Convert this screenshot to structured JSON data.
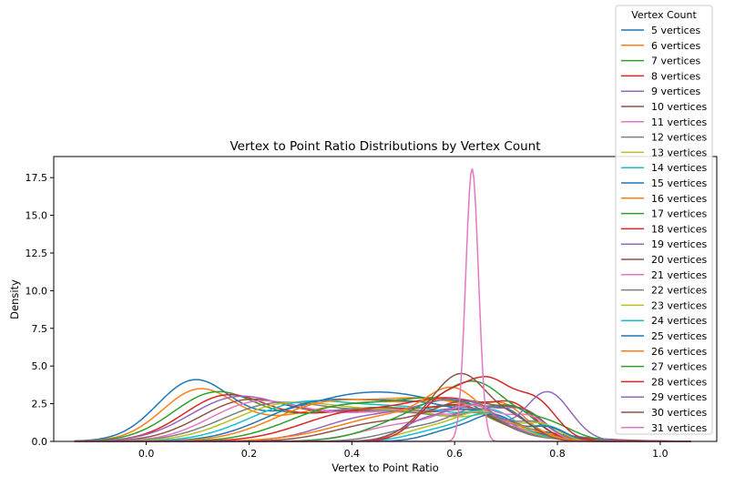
{
  "chart_data": {
    "type": "line",
    "title": "Vertex to Point Ratio Distributions by Vertex Count",
    "xlabel": "Vertex to Point Ratio",
    "ylabel": "Density",
    "xlim": [
      -0.18,
      1.11
    ],
    "ylim": [
      0,
      18.9
    ],
    "xticks": [
      0.0,
      0.2,
      0.4,
      0.6,
      0.8,
      1.0
    ],
    "xtick_labels": [
      "0.0",
      "0.2",
      "0.4",
      "0.6",
      "0.8",
      "1.0"
    ],
    "yticks": [
      0.0,
      2.5,
      5.0,
      7.5,
      10.0,
      12.5,
      15.0,
      17.5
    ],
    "ytick_labels": [
      "0.0",
      "2.5",
      "5.0",
      "7.5",
      "10.0",
      "12.5",
      "15.0",
      "17.5"
    ],
    "grid": false,
    "legend": {
      "title": "Vertex Count",
      "placement": "upper-right-outside"
    },
    "series": [
      {
        "name": "5 vertices",
        "color": "#1f77b4",
        "components": [
          [
            0.09,
            0.07,
            1.0
          ],
          [
            0.45,
            0.18,
            0.9
          ],
          [
            0.62,
            0.03,
            0.15
          ]
        ],
        "peak": 4.1
      },
      {
        "name": "6 vertices",
        "color": "#ff7f0e",
        "components": [
          [
            0.1,
            0.07,
            1.0
          ],
          [
            0.45,
            0.18,
            0.85
          ],
          [
            0.6,
            0.05,
            0.25
          ]
        ],
        "peak": 3.5
      },
      {
        "name": "7 vertices",
        "color": "#2ca02c",
        "components": [
          [
            0.13,
            0.08,
            1.0
          ],
          [
            0.45,
            0.18,
            0.8
          ],
          [
            0.62,
            0.05,
            0.3
          ]
        ],
        "peak": 3.3
      },
      {
        "name": "8 vertices",
        "color": "#d62728",
        "components": [
          [
            0.15,
            0.08,
            1.0
          ],
          [
            0.46,
            0.18,
            0.85
          ],
          [
            0.62,
            0.05,
            0.35
          ]
        ],
        "peak": 3.1
      },
      {
        "name": "9 vertices",
        "color": "#9467bd",
        "components": [
          [
            0.17,
            0.09,
            1.0
          ],
          [
            0.46,
            0.16,
            0.85
          ],
          [
            0.64,
            0.05,
            0.4
          ]
        ],
        "peak": 3.0
      },
      {
        "name": "10 vertices",
        "color": "#8c564b",
        "components": [
          [
            0.19,
            0.09,
            1.0
          ],
          [
            0.47,
            0.15,
            0.85
          ],
          [
            0.64,
            0.05,
            0.4
          ]
        ],
        "peak": 2.8
      },
      {
        "name": "11 vertices",
        "color": "#e377c2",
        "components": [
          [
            0.21,
            0.09,
            1.0
          ],
          [
            0.48,
            0.15,
            0.85
          ],
          [
            0.66,
            0.05,
            0.4
          ]
        ],
        "peak": 2.7
      },
      {
        "name": "12 vertices",
        "color": "#7f7f7f",
        "components": [
          [
            0.24,
            0.1,
            1.0
          ],
          [
            0.49,
            0.14,
            0.9
          ],
          [
            0.66,
            0.04,
            0.45
          ]
        ],
        "peak": 2.6
      },
      {
        "name": "13 vertices",
        "color": "#bcbd22",
        "components": [
          [
            0.26,
            0.1,
            1.0
          ],
          [
            0.5,
            0.14,
            0.95
          ],
          [
            0.68,
            0.04,
            0.45
          ]
        ],
        "peak": 2.6
      },
      {
        "name": "14 vertices",
        "color": "#17becf",
        "components": [
          [
            0.29,
            0.1,
            1.0
          ],
          [
            0.52,
            0.13,
            1.0
          ],
          [
            0.68,
            0.04,
            0.5
          ]
        ],
        "peak": 2.7
      },
      {
        "name": "15 vertices",
        "color": "#1f77b4",
        "components": [
          [
            0.32,
            0.1,
            0.9
          ],
          [
            0.54,
            0.12,
            1.0
          ],
          [
            0.7,
            0.04,
            0.5
          ]
        ],
        "peak": 2.8
      },
      {
        "name": "16 vertices",
        "color": "#ff7f0e",
        "components": [
          [
            0.34,
            0.1,
            0.85
          ],
          [
            0.56,
            0.11,
            1.0
          ],
          [
            0.7,
            0.04,
            0.5
          ]
        ],
        "peak": 2.9
      },
      {
        "name": "17 vertices",
        "color": "#2ca02c",
        "components": [
          [
            0.37,
            0.1,
            0.8
          ],
          [
            0.58,
            0.1,
            1.0
          ],
          [
            0.72,
            0.04,
            0.5
          ]
        ],
        "peak": 2.9
      },
      {
        "name": "18 vertices",
        "color": "#d62728",
        "components": [
          [
            0.4,
            0.1,
            0.7
          ],
          [
            0.6,
            0.09,
            1.0
          ],
          [
            0.72,
            0.04,
            0.55
          ]
        ],
        "peak": 2.9
      },
      {
        "name": "19 vertices",
        "color": "#9467bd",
        "components": [
          [
            0.43,
            0.09,
            0.6
          ],
          [
            0.61,
            0.08,
            1.0
          ],
          [
            0.74,
            0.04,
            0.55
          ]
        ],
        "peak": 2.8
      },
      {
        "name": "20 vertices",
        "color": "#8c564b",
        "components": [
          [
            0.46,
            0.09,
            0.5
          ],
          [
            0.63,
            0.07,
            1.0
          ],
          [
            0.74,
            0.04,
            0.55
          ]
        ],
        "peak": 2.7
      },
      {
        "name": "21 vertices",
        "color": "#e377c2",
        "components": [
          [
            0.5,
            0.08,
            0.5
          ],
          [
            0.64,
            0.06,
            1.0
          ],
          [
            0.75,
            0.035,
            0.6
          ]
        ],
        "peak": 2.4
      },
      {
        "name": "22 vertices",
        "color": "#7f7f7f",
        "components": [
          [
            0.54,
            0.07,
            0.5
          ],
          [
            0.65,
            0.05,
            1.0
          ],
          [
            0.76,
            0.035,
            0.6
          ]
        ],
        "peak": 2.2
      },
      {
        "name": "23 vertices",
        "color": "#bcbd22",
        "components": [
          [
            0.56,
            0.06,
            0.5
          ],
          [
            0.66,
            0.05,
            1.0
          ],
          [
            0.77,
            0.035,
            0.6
          ]
        ],
        "peak": 2.0
      },
      {
        "name": "24 vertices",
        "color": "#17becf",
        "components": [
          [
            0.58,
            0.06,
            0.5
          ],
          [
            0.67,
            0.045,
            1.0
          ],
          [
            0.78,
            0.035,
            0.6
          ]
        ],
        "peak": 1.9
      },
      {
        "name": "25 vertices",
        "color": "#1f77b4",
        "components": [
          [
            0.6,
            0.05,
            0.5
          ],
          [
            0.68,
            0.04,
            1.0
          ],
          [
            0.78,
            0.035,
            0.6
          ]
        ],
        "peak": 1.8
      },
      {
        "name": "26 vertices",
        "color": "#ff7f0e",
        "components": [
          [
            0.5,
            0.12,
            0.8
          ],
          [
            0.6,
            0.05,
            1.0
          ],
          [
            0.72,
            0.05,
            0.3
          ]
        ],
        "peak": 3.6
      },
      {
        "name": "27 vertices",
        "color": "#2ca02c",
        "components": [
          [
            0.55,
            0.09,
            0.7
          ],
          [
            0.65,
            0.06,
            1.0
          ],
          [
            0.78,
            0.05,
            0.4
          ]
        ],
        "peak": 4.0
      },
      {
        "name": "28 vertices",
        "color": "#d62728",
        "components": [
          [
            0.58,
            0.05,
            0.8
          ],
          [
            0.67,
            0.045,
            1.0
          ],
          [
            0.76,
            0.04,
            0.7
          ]
        ],
        "peak": 4.3
      },
      {
        "name": "29 vertices",
        "color": "#9467bd",
        "components": [
          [
            0.55,
            0.05,
            0.45
          ],
          [
            0.64,
            0.04,
            0.7
          ],
          [
            0.78,
            0.045,
            1.0
          ]
        ],
        "peak": 3.3
      },
      {
        "name": "30 vertices",
        "color": "#8c564b",
        "components": [
          [
            0.62,
            0.05,
            1.0
          ],
          [
            0.55,
            0.05,
            0.3
          ],
          [
            0.72,
            0.04,
            0.3
          ]
        ],
        "peak": 4.5
      },
      {
        "name": "31 vertices",
        "color": "#e377c2",
        "components": [
          [
            0.634,
            0.0125,
            1.0
          ]
        ],
        "peak": 18.1
      }
    ]
  }
}
